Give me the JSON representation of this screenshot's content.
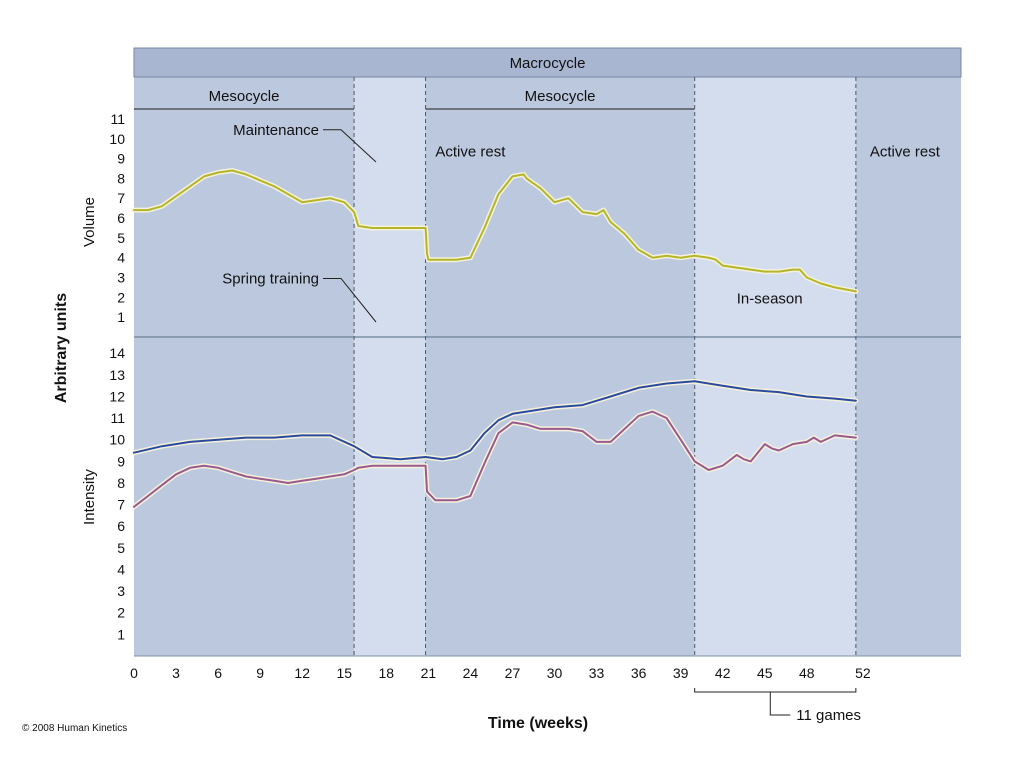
{
  "chart_data": {
    "type": "line",
    "xlabel": "Time (weeks)",
    "ylabel": "Arbitrary units",
    "x_ticks": [
      0,
      3,
      6,
      9,
      12,
      15,
      18,
      21,
      24,
      27,
      30,
      33,
      36,
      39,
      42,
      45,
      48,
      52
    ],
    "xlim": [
      0,
      59
    ],
    "header": "Macrocycle",
    "mesocycles": [
      {
        "label": "Mesocycle",
        "start": 0,
        "end": 15.7
      },
      {
        "label": "Mesocycle",
        "start": 20.8,
        "end": 40
      }
    ],
    "phase_dividers": [
      15.7,
      20.8,
      40,
      51.5
    ],
    "phases": [
      {
        "start": 0,
        "end": 15.7,
        "shade": "dark"
      },
      {
        "start": 15.7,
        "end": 20.8,
        "shade": "light"
      },
      {
        "start": 20.8,
        "end": 40,
        "shade": "dark"
      },
      {
        "start": 40,
        "end": 51.5,
        "shade": "light"
      },
      {
        "start": 51.5,
        "end": 59,
        "shade": "dark"
      }
    ],
    "annotations": [
      {
        "text": "Maintenance",
        "x": 13.2,
        "y": 10.2,
        "panel": "volume"
      },
      {
        "text": "Active rest",
        "x": 21.5,
        "y": 9.1,
        "panel": "volume"
      },
      {
        "text": "Active rest",
        "x": 52.5,
        "y": 9.1,
        "panel": "volume"
      },
      {
        "text": "Spring training",
        "x": 13.2,
        "y": 2.7,
        "panel": "volume"
      },
      {
        "text": "In-season",
        "x": 43,
        "y": 1.7,
        "panel": "volume"
      }
    ],
    "games_bracket": {
      "start": 40,
      "end": 51.5,
      "label": "11 games"
    },
    "copyright": "© 2008 Human Kinetics",
    "panels": [
      {
        "name": "volume",
        "ylabel": "Volume",
        "ylim": [
          0,
          11
        ],
        "y_ticks": [
          1,
          2,
          3,
          4,
          5,
          6,
          7,
          8,
          9,
          10,
          11
        ],
        "series": [
          {
            "color": "#b5b52a",
            "x": [
              0,
              1,
              2,
              3,
              4,
              5,
              6,
              7,
              8,
              9,
              10,
              11,
              12,
              13,
              14,
              15,
              15.7,
              16,
              17,
              18,
              19,
              20.8,
              20.9,
              21,
              22,
              23,
              24,
              25,
              26,
              27,
              27.8,
              28,
              29,
              30,
              31,
              32,
              33,
              33.5,
              34,
              35,
              36,
              37,
              38,
              39,
              40,
              41,
              41.5,
              42,
              43,
              44,
              45,
              46,
              47,
              47.5,
              48,
              49,
              50,
              51.5
            ],
            "values": [
              6.4,
              6.4,
              6.6,
              7.1,
              7.6,
              8.1,
              8.3,
              8.4,
              8.2,
              7.9,
              7.6,
              7.2,
              6.8,
              6.9,
              7.0,
              6.8,
              6.3,
              5.6,
              5.5,
              5.5,
              5.5,
              5.5,
              4.2,
              3.9,
              3.9,
              3.9,
              4.0,
              5.5,
              7.2,
              8.1,
              8.2,
              8.0,
              7.5,
              6.8,
              7.0,
              6.3,
              6.2,
              6.4,
              5.8,
              5.2,
              4.4,
              4.0,
              4.1,
              4.0,
              4.1,
              4.0,
              3.9,
              3.6,
              3.5,
              3.4,
              3.3,
              3.3,
              3.4,
              3.4,
              3.0,
              2.7,
              2.5,
              2.3
            ]
          }
        ]
      },
      {
        "name": "intensity",
        "ylabel": "Intensity",
        "ylim": [
          0,
          14
        ],
        "y_ticks": [
          1,
          2,
          3,
          4,
          5,
          6,
          7,
          8,
          9,
          10,
          11,
          12,
          13,
          14
        ],
        "series": [
          {
            "color": "#2b4a9e",
            "x": [
              0,
              2,
              4,
              6,
              8,
              10,
              12,
              14,
              15.7,
              17,
              19,
              20.8,
              22,
              23,
              24,
              25,
              26,
              27,
              28,
              30,
              32,
              34,
              36,
              38,
              40,
              42,
              44,
              46,
              48,
              50,
              51.5
            ],
            "values": [
              9.4,
              9.7,
              9.9,
              10.0,
              10.1,
              10.1,
              10.2,
              10.2,
              9.7,
              9.2,
              9.1,
              9.2,
              9.1,
              9.2,
              9.5,
              10.3,
              10.9,
              11.2,
              11.3,
              11.5,
              11.6,
              12.0,
              12.4,
              12.6,
              12.7,
              12.5,
              12.3,
              12.2,
              12.0,
              11.9,
              11.8
            ]
          },
          {
            "color": "#9a5a8e",
            "x": [
              0,
              1,
              2,
              3,
              4,
              5,
              6,
              7,
              8,
              9,
              10,
              11,
              12,
              13,
              14,
              15,
              15.7,
              16,
              17,
              18,
              19,
              20.8,
              20.9,
              21.5,
              22,
              23,
              24,
              25,
              26,
              27,
              28,
              29,
              30,
              31,
              32,
              33,
              34,
              35,
              36,
              37,
              38,
              39,
              40,
              41,
              42,
              43,
              43.5,
              44,
              45,
              45.5,
              46,
              47,
              48,
              48.5,
              49,
              50,
              51.5
            ],
            "values": [
              6.9,
              7.4,
              7.9,
              8.4,
              8.7,
              8.8,
              8.7,
              8.5,
              8.3,
              8.2,
              8.1,
              8.0,
              8.1,
              8.2,
              8.3,
              8.4,
              8.6,
              8.7,
              8.8,
              8.8,
              8.8,
              8.8,
              7.6,
              7.2,
              7.2,
              7.2,
              7.4,
              8.9,
              10.3,
              10.8,
              10.7,
              10.5,
              10.5,
              10.5,
              10.4,
              9.9,
              9.9,
              10.5,
              11.1,
              11.3,
              11.0,
              10.0,
              9.0,
              8.6,
              8.8,
              9.3,
              9.1,
              9.0,
              9.8,
              9.6,
              9.5,
              9.8,
              9.9,
              10.1,
              9.9,
              10.2,
              10.1
            ]
          }
        ]
      }
    ]
  }
}
